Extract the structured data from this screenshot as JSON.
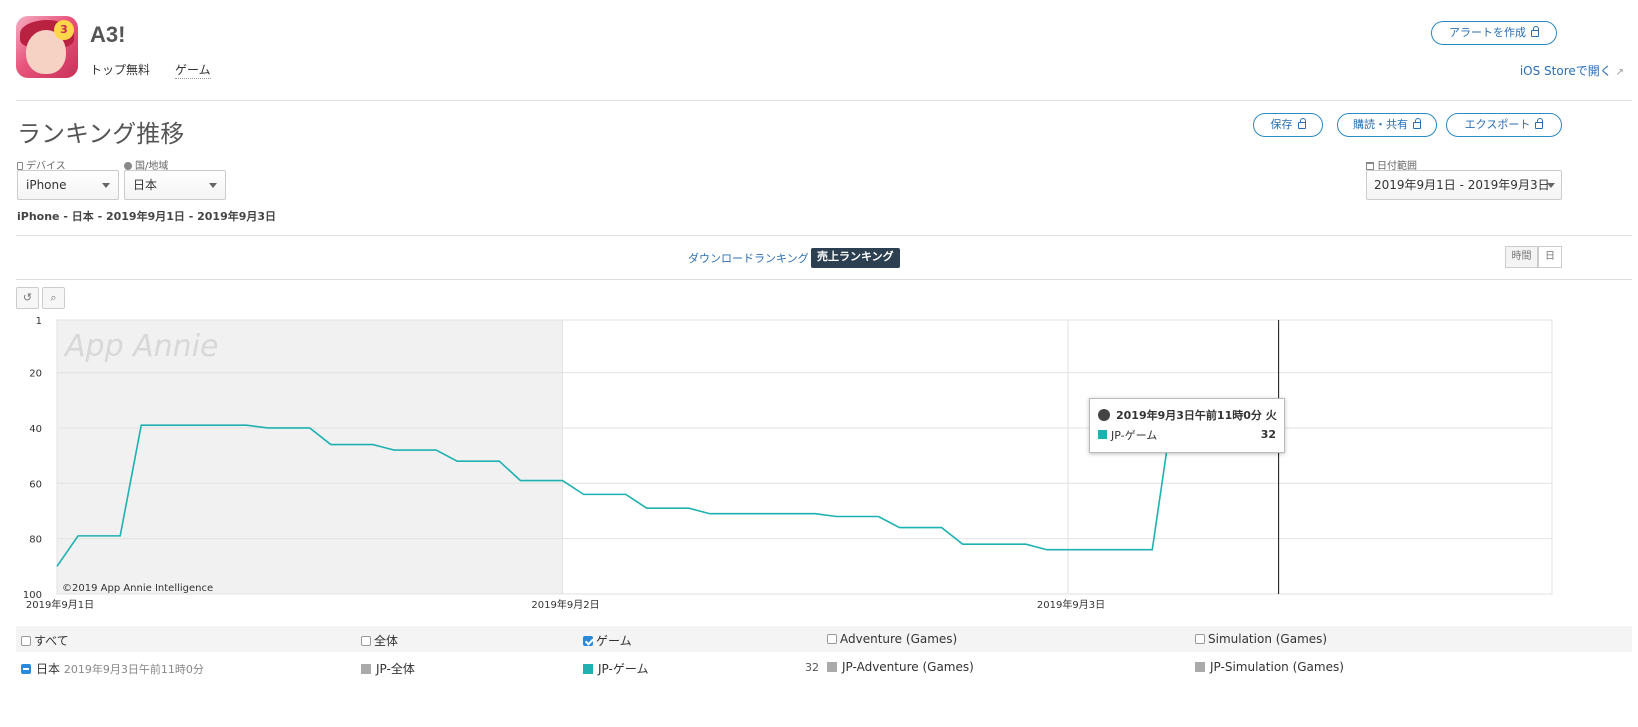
{
  "app": {
    "title": "A3!",
    "category_top": "トップ無料",
    "category_game": "ゲーム",
    "icon_badge": "3",
    "store_link": "iOS Storeで開く"
  },
  "actions": {
    "alert": "アラートを作成",
    "save": "保存",
    "subscribe": "購読・共有",
    "export": "エクスポート"
  },
  "section": {
    "title": "ランキング推移"
  },
  "filters": {
    "device_label": "デバイス",
    "device_value": "iPhone",
    "country_label": "国/地域",
    "country_value": "日本",
    "date_label": "日付範囲",
    "date_value": "2019年9月1日 - 2019年9月3日",
    "summary": "iPhone - 日本 - 2019年9月1日 - 2019年9月3日"
  },
  "tabs": {
    "download": "ダウンロードランキング",
    "sales": "売上ランキング"
  },
  "granularity": {
    "hour": "時間",
    "day": "日"
  },
  "colors": {
    "series": "#1fb1b1",
    "accent": "#2a6fb3",
    "dark_tab": "#2d4051"
  },
  "chart_data": {
    "type": "line",
    "y_reversed": true,
    "ylim": [
      1,
      100
    ],
    "y_ticks": [
      "1",
      "20",
      "40",
      "60",
      "80",
      "100"
    ],
    "x_ticks": [
      "2019年9月1日",
      "2019年9月2日",
      "2019年9月3日"
    ],
    "watermark": "App Annie",
    "copyright": "©2019 App Annie Intelligence",
    "series": [
      {
        "name": "JP-ゲーム",
        "points": [
          [
            0,
            90
          ],
          [
            1,
            79
          ],
          [
            3,
            79
          ],
          [
            4,
            39
          ],
          [
            9,
            39
          ],
          [
            10,
            40
          ],
          [
            12,
            40
          ],
          [
            13,
            46
          ],
          [
            15,
            46
          ],
          [
            16,
            48
          ],
          [
            18,
            48
          ],
          [
            19,
            52
          ],
          [
            21,
            52
          ],
          [
            22,
            59
          ],
          [
            24,
            59
          ],
          [
            25,
            64
          ],
          [
            27,
            64
          ],
          [
            28,
            69
          ],
          [
            30,
            69
          ],
          [
            31,
            71
          ],
          [
            36,
            71
          ],
          [
            37,
            72
          ],
          [
            39,
            72
          ],
          [
            40,
            76
          ],
          [
            42,
            76
          ],
          [
            43,
            82
          ],
          [
            46,
            82
          ],
          [
            47,
            84
          ],
          [
            52,
            84
          ],
          [
            53,
            32
          ],
          [
            58,
            32
          ]
        ]
      }
    ]
  },
  "tooltip": {
    "date": "2019年9月3日午前11時0分 火",
    "series": "JP-ゲーム",
    "value": "32"
  },
  "legend": {
    "all": "すべて",
    "overall": "全体",
    "game": "ゲーム",
    "adventure": "Adventure (Games)",
    "simulation": "Simulation (Games)",
    "row_country": "日本",
    "row_date": "2019年9月3日午前11時0分",
    "row_overall": "JP-全体",
    "row_game": "JP-ゲーム",
    "row_game_value": "32",
    "row_adventure": "JP-Adventure (Games)",
    "row_simulation": "JP-Simulation (Games)"
  }
}
